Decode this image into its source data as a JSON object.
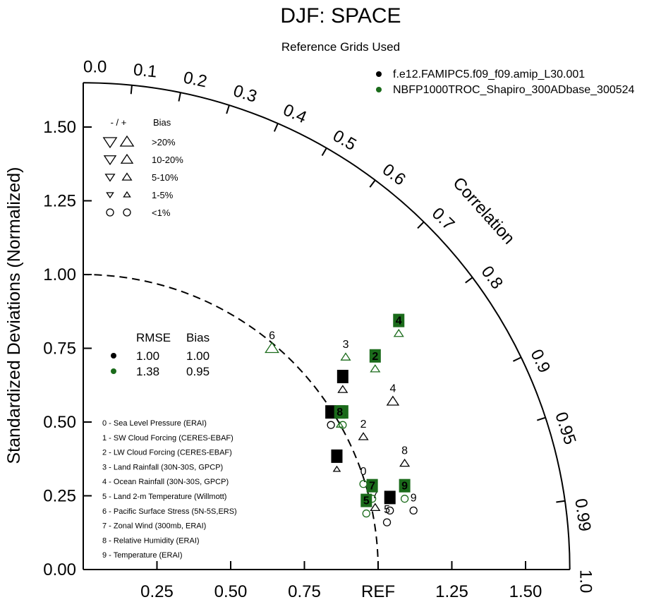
{
  "title": "DJF: SPACE",
  "subtitle": "Reference Grids Used",
  "colors": {
    "case1": "#000000",
    "case2": "#1b6b1b"
  },
  "chart_data": {
    "type": "scatter",
    "title": "DJF: SPACE",
    "subtitle": "Reference Grids Used",
    "ylabel": "Standardized Deviations (Normalized)",
    "arc_label": "Correlation",
    "xlim": [
      0,
      1.65
    ],
    "ylim": [
      0,
      1.65
    ],
    "x_ticks": [
      "0.25",
      "0.50",
      "0.75",
      "REF",
      "1.25",
      "1.50"
    ],
    "x_tick_values": [
      0.25,
      0.5,
      0.75,
      1.0,
      1.25,
      1.5
    ],
    "y_ticks": [
      "0.00",
      "0.25",
      "0.50",
      "0.75",
      "1.00",
      "1.25",
      "1.50"
    ],
    "y_tick_values": [
      0,
      0.25,
      0.5,
      0.75,
      1.0,
      1.25,
      1.5
    ],
    "correlation_ticks": [
      "0.0",
      "0.1",
      "0.2",
      "0.3",
      "0.4",
      "0.5",
      "0.6",
      "0.7",
      "0.8",
      "0.9",
      "0.95",
      "0.99",
      "1.0"
    ],
    "correlation_values": [
      0.0,
      0.1,
      0.2,
      0.3,
      0.4,
      0.5,
      0.6,
      0.7,
      0.8,
      0.9,
      0.95,
      0.99,
      1.0
    ],
    "reference_arc_radius": 1.0,
    "series": [
      {
        "name": "f.e12.FAMIPC5.f09_f09.amip_L30.001",
        "color": "#000000",
        "rmse": "1.00",
        "bias": "1.00",
        "points": [
          {
            "id": "0",
            "x": 1.04,
            "y": 0.2,
            "bias_symbol": "circle",
            "bias_size": "small",
            "label_style": "box"
          },
          {
            "id": "1",
            "x": 0.84,
            "y": 0.49,
            "bias_symbol": "circle",
            "bias_size": "small",
            "label_style": "box"
          },
          {
            "id": "2",
            "x": 0.95,
            "y": 0.45,
            "bias_symbol": "up",
            "bias_size": "5-10",
            "label_style": "text"
          },
          {
            "id": "3",
            "x": 0.88,
            "y": 0.61,
            "bias_symbol": "up",
            "bias_size": "5-10",
            "label_style": "box"
          },
          {
            "id": "4",
            "x": 1.05,
            "y": 0.57,
            "bias_symbol": "up",
            "bias_size": "10-20",
            "label_style": "text"
          },
          {
            "id": "5",
            "x": 1.03,
            "y": 0.16,
            "bias_symbol": "circle",
            "bias_size": "small",
            "label_style": "text"
          },
          {
            "id": "6",
            "x": 0.86,
            "y": 0.34,
            "bias_symbol": "up",
            "bias_size": "1-5",
            "label_style": "box"
          },
          {
            "id": "7",
            "x": 0.99,
            "y": 0.21,
            "bias_symbol": "up",
            "bias_size": "5-10",
            "label_style": "text"
          },
          {
            "id": "8",
            "x": 1.09,
            "y": 0.36,
            "bias_symbol": "up",
            "bias_size": "5-10",
            "label_style": "text"
          },
          {
            "id": "9",
            "x": 1.12,
            "y": 0.2,
            "bias_symbol": "circle",
            "bias_size": "small",
            "label_style": "text"
          }
        ]
      },
      {
        "name": "NBFP1000TROC_Shapiro_300ADbase_300524",
        "color": "#1b6b1b",
        "rmse": "1.38",
        "bias": "0.95",
        "points": [
          {
            "id": "0",
            "x": 0.95,
            "y": 0.29,
            "bias_symbol": "circle",
            "bias_size": "small",
            "label_style": "text"
          },
          {
            "id": "1",
            "x": 0.88,
            "y": 0.49,
            "bias_symbol": "circle",
            "bias_size": "small",
            "label_style": "box"
          },
          {
            "id": "2",
            "x": 0.99,
            "y": 0.68,
            "bias_symbol": "up",
            "bias_size": "5-10",
            "label_style": "box"
          },
          {
            "id": "3",
            "x": 0.89,
            "y": 0.72,
            "bias_symbol": "up",
            "bias_size": "5-10",
            "label_style": "text"
          },
          {
            "id": "4",
            "x": 1.07,
            "y": 0.8,
            "bias_symbol": "up",
            "bias_size": "5-10",
            "label_style": "box"
          },
          {
            "id": "5",
            "x": 0.96,
            "y": 0.19,
            "bias_symbol": "circle",
            "bias_size": "small",
            "label_style": "box"
          },
          {
            "id": "6",
            "x": 0.64,
            "y": 0.75,
            "bias_symbol": "up",
            "bias_size": ">20",
            "label_style": "text"
          },
          {
            "id": "7",
            "x": 0.98,
            "y": 0.24,
            "bias_symbol": "circle",
            "bias_size": "small",
            "label_style": "box"
          },
          {
            "id": "8",
            "x": 0.87,
            "y": 0.49,
            "bias_symbol": "up",
            "bias_size": "1-5",
            "label_style": "box"
          },
          {
            "id": "9",
            "x": 1.09,
            "y": 0.24,
            "bias_symbol": "circle",
            "bias_size": "small",
            "label_style": "box"
          }
        ]
      }
    ],
    "bias_legend": {
      "header_signs": "- / +",
      "header_label": "Bias",
      "rows": [
        {
          "label": ">20%",
          "size": ">20"
        },
        {
          "label": "10-20%",
          "size": "10-20"
        },
        {
          "label": "5-10%",
          "size": "5-10"
        },
        {
          "label": "1-5%",
          "size": "1-5"
        },
        {
          "label": "<1%",
          "size": "small"
        }
      ]
    },
    "stats_legend": {
      "col1": "RMSE",
      "col2": "Bias"
    },
    "variables": [
      "0 - Sea Level Pressure (ERAI)",
      "1 - SW Cloud Forcing (CERES-EBAF)",
      "2 - LW Cloud Forcing (CERES-EBAF)",
      "3 - Land Rainfall (30N-30S, GPCP)",
      "4 - Ocean Rainfall (30N-30S, GPCP)",
      "5 - Land 2-m Temperature (Willmott)",
      "6 - Pacific Surface Stress (5N-5S,ERS)",
      "7 - Zonal Wind (300mb, ERAI)",
      "8 - Relative Humidity (ERAI)",
      "9 - Temperature (ERAI)"
    ]
  }
}
